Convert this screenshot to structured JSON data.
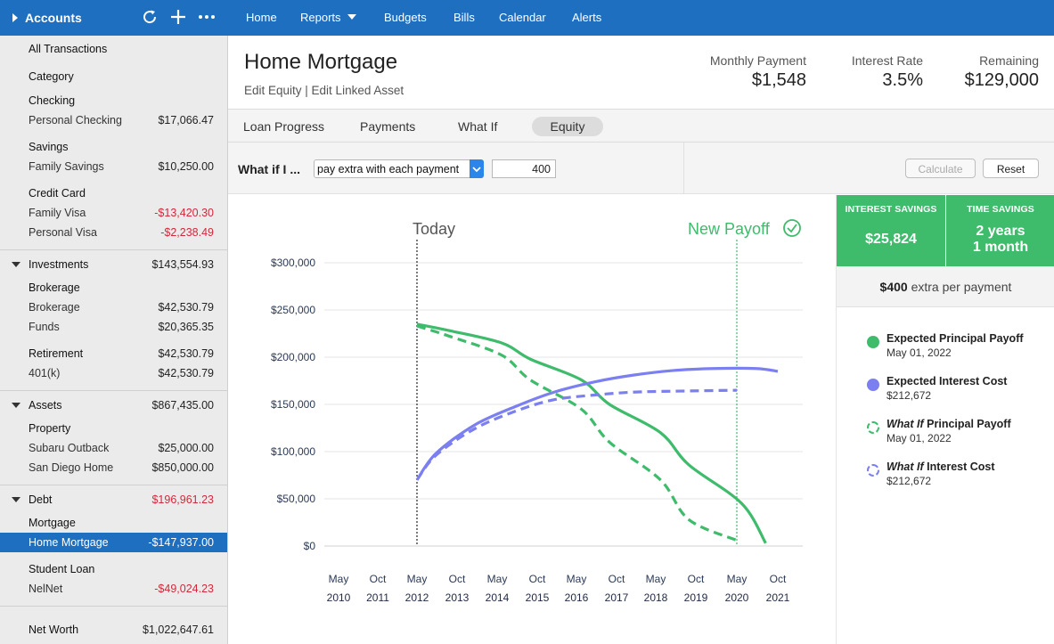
{
  "sidebar": {
    "title": "Accounts",
    "rows": [
      {
        "label": "All Transactions",
        "value": "",
        "kind": "section"
      },
      {
        "label": "Category",
        "value": "",
        "kind": "group"
      },
      {
        "label": "Checking",
        "value": "",
        "kind": "group"
      },
      {
        "label": "Personal Checking",
        "value": "$17,066.47",
        "kind": "sub"
      },
      {
        "label": "Savings",
        "value": "",
        "kind": "group"
      },
      {
        "label": "Family Savings",
        "value": "$10,250.00",
        "kind": "sub"
      },
      {
        "label": "Credit Card",
        "value": "",
        "kind": "group"
      },
      {
        "label": "Family Visa",
        "value": "-$13,420.30",
        "kind": "sub",
        "negative": true
      },
      {
        "label": "Personal Visa",
        "value": "-$2,238.49",
        "kind": "sub",
        "negative": true
      },
      {
        "label": "Investments",
        "value": "$143,554.93",
        "kind": "section"
      },
      {
        "label": "Brokerage",
        "value": "",
        "kind": "group"
      },
      {
        "label": "Brokerage",
        "value": "$42,530.79",
        "kind": "sub"
      },
      {
        "label": "Funds",
        "value": "$20,365.35",
        "kind": "sub"
      },
      {
        "label": "Retirement",
        "value": "$42,530.79",
        "kind": "group"
      },
      {
        "label": "401(k)",
        "value": "$42,530.79",
        "kind": "sub"
      },
      {
        "label": "Assets",
        "value": "$867,435.00",
        "kind": "section"
      },
      {
        "label": "Property",
        "value": "",
        "kind": "group"
      },
      {
        "label": "Subaru Outback",
        "value": "$25,000.00",
        "kind": "sub"
      },
      {
        "label": "San Diego Home",
        "value": "$850,000.00",
        "kind": "sub"
      },
      {
        "label": "Debt",
        "value": "$196,961.23",
        "kind": "section",
        "negative": true
      },
      {
        "label": "Mortgage",
        "value": "",
        "kind": "group"
      },
      {
        "label": "Home Mortgage",
        "value": "-$147,937.00",
        "kind": "sub",
        "selected": true
      },
      {
        "label": "Student Loan",
        "value": "",
        "kind": "group"
      },
      {
        "label": "NelNet",
        "value": "-$49,024.23",
        "kind": "sub",
        "negative": true
      },
      {
        "label": "Net Worth",
        "value": "$1,022,647.61",
        "kind": "section"
      }
    ]
  },
  "nav": {
    "items": [
      "Home",
      "Reports",
      "Budgets",
      "Bills",
      "Calendar",
      "Alerts"
    ]
  },
  "header": {
    "title": "Home Mortgage",
    "links": "Edit Equity | Edit Linked Asset",
    "stats": [
      {
        "label": "Monthly Payment",
        "value": "$1,548"
      },
      {
        "label": "Interest Rate",
        "value": "3.5%"
      },
      {
        "label": "Remaining",
        "value": "$129,000"
      }
    ]
  },
  "tabs": [
    "Loan Progress",
    "Payments",
    "What If",
    "Equity"
  ],
  "whatif": {
    "label": "What if I ...",
    "selected_option": "pay extra with each payment",
    "amount": "400",
    "calculate_label": "Calculate",
    "reset_label": "Reset"
  },
  "savings": {
    "interest_label": "INTEREST SAVINGS",
    "interest_value": "$25,824",
    "time_label": "TIME SAVINGS",
    "time_value_line1": "2 years",
    "time_value_line2": "1 month",
    "extra_amount": "$400",
    "extra_text": "extra per payment"
  },
  "legend": [
    {
      "prefix": "",
      "title": "Expected Principal Payoff",
      "sub": "May 01, 2022",
      "color": "#3fbb6c",
      "dashed": false
    },
    {
      "prefix": "",
      "title": "Expected Interest Cost",
      "sub": "$212,672",
      "color": "#7b7ff0",
      "dashed": false
    },
    {
      "prefix": "What If",
      "title": " Principal Payoff",
      "sub": "May 01, 2022",
      "color": "#3fbb6c",
      "dashed": true
    },
    {
      "prefix": "What If",
      "title": " Interest Cost",
      "sub": "$212,672",
      "color": "#7b7ff0",
      "dashed": true
    }
  ],
  "chart_data": {
    "type": "line",
    "x_labels_month": [
      "May",
      "Oct",
      "May",
      "Oct",
      "May",
      "Oct",
      "May",
      "Oct",
      "May",
      "Oct",
      "May",
      "Oct"
    ],
    "x_labels_year": [
      "2010",
      "2011",
      "2012",
      "2013",
      "2014",
      "2015",
      "2016",
      "2017",
      "2018",
      "2019",
      "2020",
      "2021"
    ],
    "y_ticks": [
      "$0",
      "$50,000",
      "$100,000",
      "$150,000",
      "$200,000",
      "$250,000",
      "$300,000"
    ],
    "ylim": [
      0,
      300000
    ],
    "today_label": "Today",
    "today_x": 2012.33,
    "payoff_label": "New Payoff",
    "payoff_x": 2020.33,
    "series": [
      {
        "name": "Expected Principal Payoff",
        "color": "#3fbb6c",
        "dashed": false,
        "x": [
          2012.33,
          2013.5,
          2014.5,
          2015.5,
          2016.5,
          2017.5,
          2018.5,
          2019.5,
          2020.5,
          2021.33
        ],
        "y": [
          235000,
          228000,
          215000,
          198000,
          176000,
          150000,
          120000,
          86000,
          45000,
          3000
        ]
      },
      {
        "name": "Expected Interest Cost",
        "color": "#7b7ff0",
        "dashed": false,
        "x": [
          2012.33,
          2013.0,
          2014.0,
          2015.0,
          2016.0,
          2017.0,
          2018.0,
          2019.0,
          2020.0,
          2021.0,
          2021.83
        ],
        "y": [
          70000,
          98000,
          128000,
          148000,
          163000,
          174000,
          181000,
          186000,
          188000,
          188000,
          185000
        ]
      },
      {
        "name": "What If Principal Payoff",
        "color": "#3fbb6c",
        "dashed": true,
        "x": [
          2012.33,
          2013.5,
          2014.5,
          2015.5,
          2016.5,
          2017.5,
          2018.5,
          2019.5,
          2020.33
        ],
        "y": [
          233000,
          222000,
          202000,
          176000,
          145000,
          110000,
          70000,
          28000,
          6000
        ]
      },
      {
        "name": "What If Interest Cost",
        "color": "#7b7ff0",
        "dashed": true,
        "x": [
          2012.33,
          2013.0,
          2014.0,
          2015.0,
          2016.0,
          2017.0,
          2018.0,
          2019.0,
          2020.33
        ],
        "y": [
          70000,
          96000,
          124000,
          143000,
          155000,
          160000,
          163000,
          164000,
          165000
        ]
      }
    ]
  }
}
